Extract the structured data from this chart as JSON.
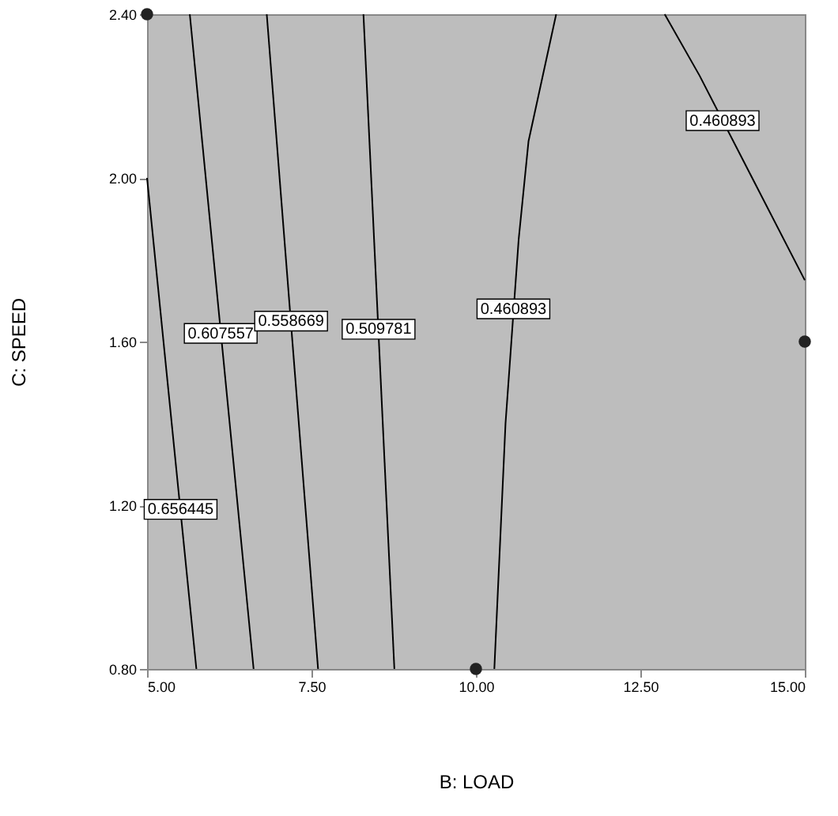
{
  "chart_data": {
    "type": "line",
    "xlabel": "B: LOAD",
    "ylabel": "C: SPEED",
    "xlim": [
      5,
      15
    ],
    "ylim": [
      0.8,
      2.4
    ],
    "xticks": [
      {
        "value": 5,
        "label": "5.00"
      },
      {
        "value": 7.5,
        "label": "7.50"
      },
      {
        "value": 10,
        "label": "10.00"
      },
      {
        "value": 12.5,
        "label": "12.50"
      },
      {
        "value": 15,
        "label": "15.00"
      }
    ],
    "yticks": [
      {
        "value": 0.8,
        "label": "0.80"
      },
      {
        "value": 1.2,
        "label": "1.20"
      },
      {
        "value": 1.6,
        "label": "1.60"
      },
      {
        "value": 2.0,
        "label": "2.00"
      },
      {
        "value": 2.4,
        "label": "2.40"
      }
    ],
    "grid": false,
    "legend": false,
    "marker": "none",
    "line_style": "solid",
    "series": [
      {
        "type": "line",
        "color": "#000000",
        "x": [
          5.0,
          5.75
        ],
        "values": [
          2.0,
          0.8
        ]
      },
      {
        "type": "line",
        "color": "#000000",
        "x": [
          5.65,
          6.62
        ],
        "values": [
          2.4,
          0.8
        ]
      },
      {
        "type": "line",
        "color": "#000000",
        "x": [
          6.82,
          7.6
        ],
        "values": [
          2.4,
          0.8
        ]
      },
      {
        "type": "line",
        "color": "#000000",
        "x": [
          8.29,
          8.76
        ],
        "values": [
          2.4,
          0.8
        ]
      },
      {
        "type": "line",
        "color": "#000000",
        "x": [
          11.22,
          10.8,
          10.65,
          10.45,
          10.28
        ],
        "values": [
          2.4,
          2.09,
          1.85,
          1.4,
          0.8
        ]
      },
      {
        "type": "line",
        "color": "#000000",
        "x": [
          12.87,
          13.4,
          14.2,
          15.0
        ],
        "values": [
          2.4,
          2.25,
          2.0,
          1.75
        ]
      },
      {
        "type": "scatter",
        "color": "#222222",
        "marker": "circle",
        "x": [
          5,
          10,
          15
        ],
        "values": [
          2.4,
          0.8,
          1.6
        ]
      }
    ],
    "annotations": [
      {
        "text": "0.656445",
        "x": 5.51,
        "y": 1.19
      },
      {
        "text": "0.607557",
        "x": 6.12,
        "y": 1.62
      },
      {
        "text": "0.558669",
        "x": 7.19,
        "y": 1.65
      },
      {
        "text": "0.509781",
        "x": 8.52,
        "y": 1.63
      },
      {
        "text": "0.460893",
        "x": 10.57,
        "y": 1.68
      },
      {
        "text": "0.460893",
        "x": 13.75,
        "y": 2.14
      }
    ]
  }
}
